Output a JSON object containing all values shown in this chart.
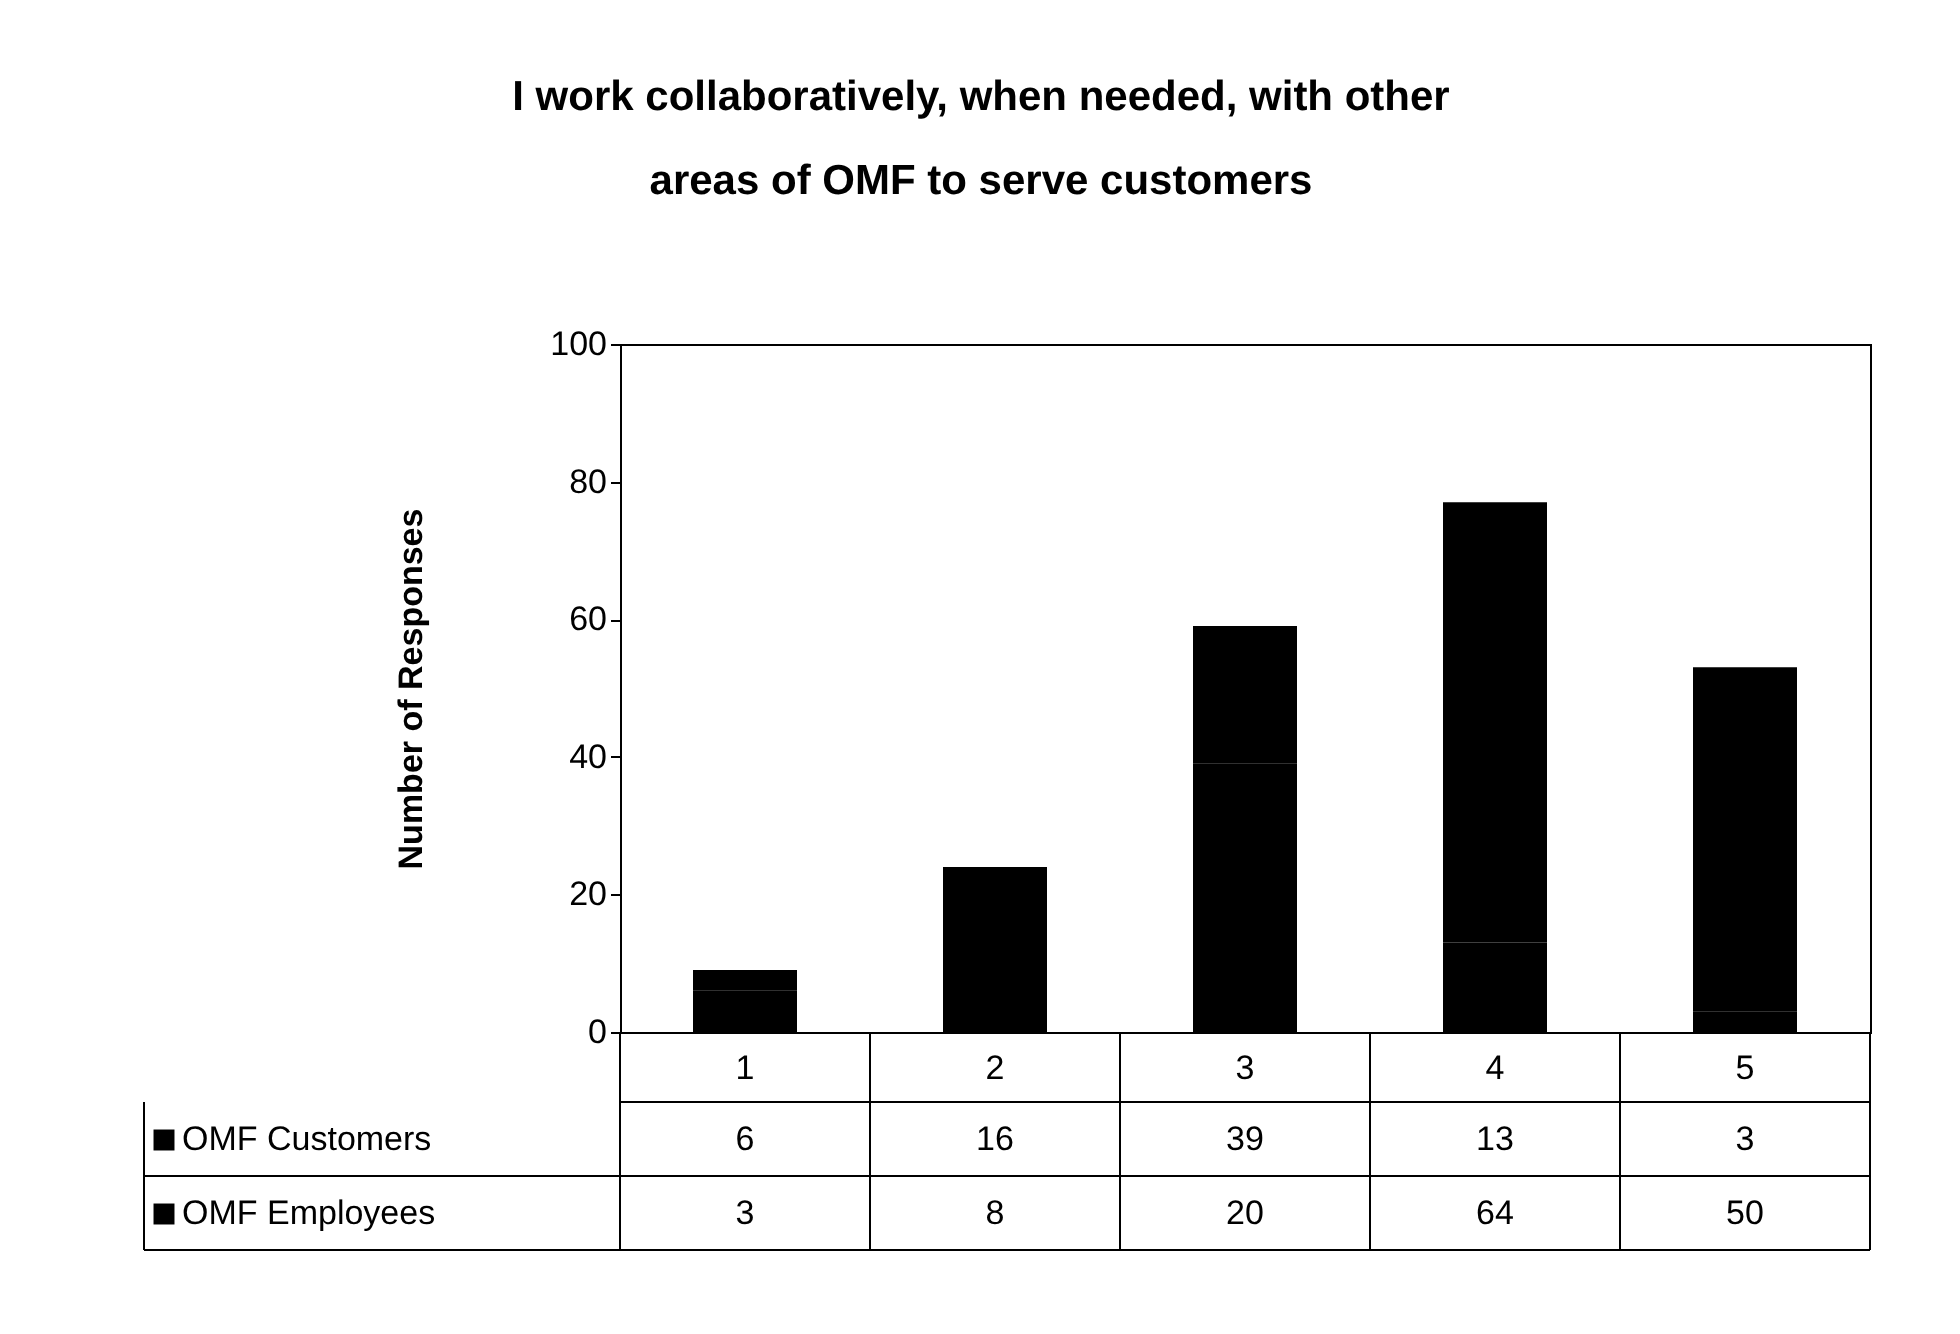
{
  "chart_data": {
    "type": "bar",
    "title": [
      "I work collaboratively, when needed, with other",
      "areas of OMF to serve customers"
    ],
    "ylabel": "Number of Responses",
    "categories": [
      "1",
      "2",
      "3",
      "4",
      "5"
    ],
    "stacked": true,
    "series": [
      {
        "name": "OMF Customers",
        "color": "#000000",
        "values": [
          6,
          16,
          39,
          13,
          3
        ]
      },
      {
        "name": "OMF Employees",
        "color": "#000000",
        "values": [
          3,
          8,
          20,
          64,
          50
        ]
      }
    ],
    "ylim": [
      0,
      100
    ],
    "yticks": [
      0,
      20,
      40,
      60,
      80,
      100
    ],
    "grid": false,
    "data_labels": true,
    "legend": "bottom left"
  }
}
